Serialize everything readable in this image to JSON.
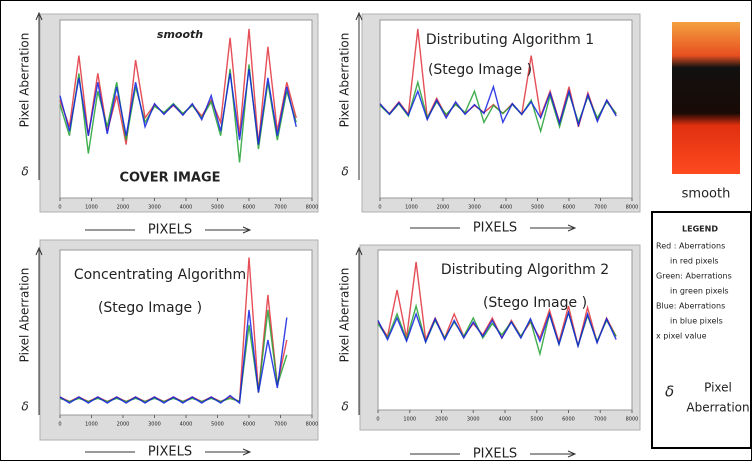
{
  "chart_data": [
    {
      "type": "line",
      "title": "smooth",
      "subtitle": "COVER IMAGE",
      "y_label": "Pixel Aberration",
      "y_symbol": "δ",
      "x_label": "PIXELS",
      "xlim": [
        0,
        8000
      ],
      "xticks": [
        0,
        1000,
        2000,
        3000,
        4000,
        5000,
        6000,
        7000,
        8000
      ],
      "ylim": [
        -100,
        100
      ],
      "x": [
        0,
        300,
        600,
        900,
        1200,
        1500,
        1800,
        2100,
        2400,
        2700,
        3000,
        3300,
        3600,
        3900,
        4200,
        4500,
        4800,
        5100,
        5400,
        5700,
        6000,
        6300,
        6600,
        6900,
        7200,
        7500
      ],
      "series": [
        {
          "color": "#e0303a",
          "values": [
            10,
            -20,
            60,
            -30,
            40,
            -25,
            15,
            -40,
            55,
            -10,
            5,
            -5,
            4,
            -6,
            5,
            -8,
            10,
            -15,
            80,
            -30,
            90,
            -40,
            70,
            -25,
            30,
            -10
          ]
        },
        {
          "color": "#20a030",
          "values": [
            5,
            -30,
            40,
            -50,
            20,
            -20,
            30,
            -35,
            25,
            -15,
            3,
            -4,
            6,
            -5,
            4,
            -10,
            8,
            -30,
            45,
            -60,
            50,
            -45,
            30,
            -35,
            20,
            -15
          ]
        },
        {
          "color": "#1020e0",
          "values": [
            15,
            -25,
            35,
            -30,
            30,
            -28,
            25,
            -30,
            30,
            -20,
            6,
            -6,
            5,
            -7,
            6,
            -12,
            15,
            -25,
            40,
            -35,
            45,
            -40,
            35,
            -30,
            25,
            -20
          ]
        }
      ]
    },
    {
      "type": "line",
      "title": "Distributing Algorithm 1",
      "subtitle": "(Stego Image )",
      "y_label": "Pixel Aberration",
      "y_symbol": "δ",
      "x_label": "PIXELS",
      "xlim": [
        0,
        8000
      ],
      "xticks": [
        0,
        1000,
        2000,
        3000,
        4000,
        5000,
        6000,
        7000,
        8000
      ],
      "ylim": [
        -100,
        100
      ],
      "x": [
        0,
        300,
        600,
        900,
        1200,
        1500,
        1800,
        2100,
        2400,
        2700,
        3000,
        3300,
        3600,
        3900,
        4200,
        4500,
        4800,
        5100,
        5400,
        5700,
        6000,
        6300,
        6600,
        6900,
        7200,
        7500
      ],
      "series": [
        {
          "color": "#e0303a",
          "values": [
            5,
            -5,
            8,
            -6,
            90,
            -10,
            12,
            -8,
            6,
            -5,
            4,
            -4,
            5,
            -5,
            6,
            -6,
            60,
            -8,
            20,
            -15,
            25,
            -20,
            18,
            -12,
            10,
            -6
          ]
        },
        {
          "color": "#20a030",
          "values": [
            4,
            -6,
            6,
            -8,
            30,
            -10,
            8,
            -6,
            5,
            -4,
            20,
            -15,
            4,
            -5,
            5,
            -6,
            10,
            -25,
            15,
            -20,
            18,
            -15,
            14,
            -10,
            8,
            -5
          ]
        },
        {
          "color": "#1020e0",
          "values": [
            6,
            -6,
            7,
            -7,
            20,
            -12,
            10,
            -10,
            8,
            -6,
            5,
            -5,
            25,
            -15,
            6,
            -6,
            8,
            -10,
            18,
            -16,
            20,
            -18,
            16,
            -14,
            10,
            -8
          ]
        }
      ]
    },
    {
      "type": "line",
      "title": "Concentrating Algorithm",
      "subtitle": "(Stego Image )",
      "y_label": "Pixel Aberration",
      "y_symbol": "δ",
      "x_label": "PIXELS",
      "xlim": [
        0,
        8000
      ],
      "xticks": [
        0,
        1000,
        2000,
        3000,
        4000,
        5000,
        6000,
        7000,
        8000
      ],
      "ylim": [
        -10,
        100
      ],
      "x": [
        0,
        300,
        600,
        900,
        1200,
        1500,
        1800,
        2100,
        2400,
        2700,
        3000,
        3300,
        3600,
        3900,
        4200,
        4500,
        4800,
        5100,
        5400,
        5700,
        6000,
        6300,
        6600,
        6900,
        7200,
        7500
      ],
      "series": [
        {
          "color": "#e0303a",
          "values": [
            2,
            -1,
            2,
            -1,
            2,
            -1,
            2,
            -1,
            2,
            -1,
            2,
            -1,
            2,
            -1,
            2,
            -1,
            2,
            -1,
            2,
            -1,
            95,
            5,
            70,
            10,
            40,
            null
          ]
        },
        {
          "color": "#20a030",
          "values": [
            1,
            -1,
            1,
            -1,
            1,
            -1,
            1,
            -1,
            1,
            -1,
            1,
            -1,
            1,
            -1,
            1,
            -1,
            1,
            -1,
            1,
            -1,
            50,
            5,
            60,
            10,
            30,
            null
          ]
        },
        {
          "color": "#1020e0",
          "values": [
            2,
            -2,
            2,
            -2,
            2,
            -2,
            2,
            -2,
            2,
            -2,
            2,
            -2,
            2,
            -2,
            2,
            -2,
            2,
            -2,
            3,
            -2,
            60,
            5,
            40,
            8,
            55,
            null
          ]
        }
      ]
    },
    {
      "type": "line",
      "title": "Distributing Algorithm 2",
      "subtitle": "(Stego Image )",
      "y_label": "Pixel Aberration",
      "y_symbol": "δ",
      "x_label": "PIXELS",
      "xlim": [
        0,
        8000
      ],
      "xticks": [
        0,
        1000,
        2000,
        3000,
        4000,
        5000,
        6000,
        7000,
        8000
      ],
      "ylim": [
        -100,
        100
      ],
      "x": [
        0,
        300,
        600,
        900,
        1200,
        1500,
        1800,
        2100,
        2400,
        2700,
        3000,
        3300,
        3600,
        3900,
        4200,
        4500,
        4800,
        5100,
        5400,
        5700,
        6000,
        6300,
        6600,
        6900,
        7200,
        7500
      ],
      "series": [
        {
          "color": "#e0303a",
          "values": [
            10,
            -8,
            50,
            -10,
            85,
            -12,
            15,
            -10,
            20,
            -8,
            8,
            -6,
            15,
            -10,
            12,
            -8,
            10,
            -10,
            25,
            -15,
            30,
            -20,
            28,
            -15,
            15,
            -8
          ]
        },
        {
          "color": "#20a030",
          "values": [
            8,
            -10,
            20,
            -12,
            30,
            -15,
            12,
            -10,
            10,
            -8,
            15,
            -10,
            8,
            -6,
            10,
            -8,
            12,
            -30,
            20,
            -18,
            22,
            -20,
            18,
            -14,
            12,
            -8
          ]
        },
        {
          "color": "#1020e0",
          "values": [
            12,
            -12,
            15,
            -14,
            20,
            -15,
            14,
            -12,
            12,
            -10,
            10,
            -8,
            12,
            -10,
            10,
            -10,
            14,
            -14,
            20,
            -18,
            22,
            -20,
            20,
            -16,
            14,
            -12
          ]
        }
      ]
    }
  ],
  "side_image": {
    "caption": "smooth"
  },
  "legend": {
    "title": "LEGEND",
    "lines": [
      "Red : Aberrations",
      "in red pixels",
      "Green: Aberrations",
      "in green pixels",
      "Blue: Aberrations",
      "in blue pixels",
      "x   pixel value"
    ],
    "symbol": "δ",
    "symbol_text": [
      "Pixel",
      "Aberration"
    ]
  }
}
